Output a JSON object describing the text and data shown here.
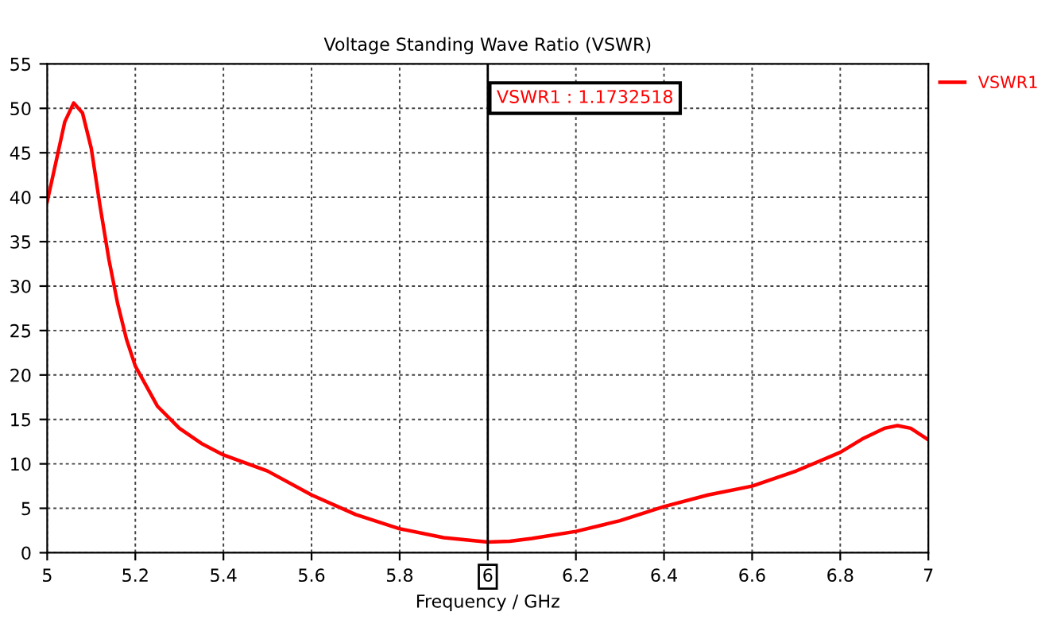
{
  "chart_data": {
    "type": "line",
    "title": "Voltage Standing Wave Ratio (VSWR)",
    "xlabel": "Frequency / GHz",
    "x": [
      5,
      5.02,
      5.04,
      5.06,
      5.08,
      5.1,
      5.12,
      5.14,
      5.16,
      5.18,
      5.2,
      5.25,
      5.3,
      5.35,
      5.4,
      5.5,
      5.6,
      5.7,
      5.8,
      5.9,
      6.0,
      6.05,
      6.1,
      6.2,
      6.3,
      6.4,
      6.5,
      6.6,
      6.7,
      6.8,
      6.85,
      6.9,
      6.93,
      6.96,
      7.0
    ],
    "series": [
      {
        "name": "VSWR1",
        "color": "#ff0000",
        "values": [
          39.5,
          44,
          48.5,
          50.6,
          49.5,
          45.5,
          39,
          33,
          28,
          24,
          21,
          16.5,
          14,
          12.3,
          11,
          9.2,
          6.5,
          4.3,
          2.7,
          1.7,
          1.2,
          1.3,
          1.6,
          2.4,
          3.6,
          5.2,
          6.5,
          7.5,
          9.2,
          11.3,
          12.8,
          14,
          14.3,
          14,
          12.7
        ]
      }
    ],
    "xlim": [
      5,
      7
    ],
    "xticks": [
      5,
      5.2,
      5.4,
      5.6,
      5.8,
      6,
      6.2,
      6.4,
      6.6,
      6.8,
      7
    ],
    "ylim": [
      0,
      55
    ],
    "yticks": [
      0,
      5,
      10,
      15,
      20,
      25,
      30,
      35,
      40,
      45,
      50,
      55
    ],
    "ref_lines": [
      {
        "axis": "x",
        "value": 6,
        "color": "#000000"
      }
    ],
    "annotations": [
      "VSWR1 : 1.1732518"
    ],
    "grid": true,
    "legend": "top right",
    "marker": "none",
    "line_style": "solid"
  }
}
